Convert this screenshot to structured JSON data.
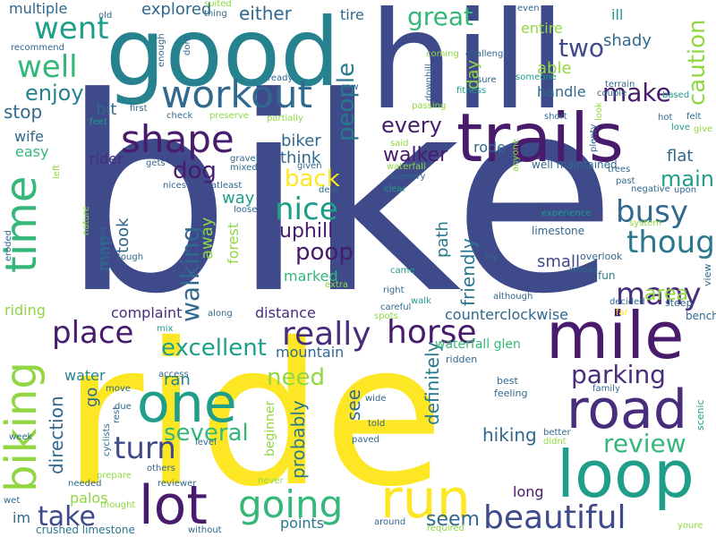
{
  "palette": {
    "navy": "#3e4a89",
    "purple": "#481b6d",
    "teal": "#26828e",
    "green": "#35b779",
    "lime": "#90d743",
    "yellow": "#fde725",
    "blue": "#31688e",
    "blue2": "#2a788e",
    "sea": "#1f9e89",
    "violet": "#472d7b"
  },
  "words": [
    {
      "text": "bike",
      "color": "navy"
    },
    {
      "text": "ride",
      "color": "yellow"
    },
    {
      "text": "hill",
      "color": "navy"
    },
    {
      "text": "good",
      "color": "teal"
    },
    {
      "text": "trails",
      "color": "purple"
    },
    {
      "text": "mile",
      "color": "purple"
    },
    {
      "text": "loop",
      "color": "sea"
    },
    {
      "text": "run",
      "color": "yellow"
    },
    {
      "text": "one",
      "color": "sea"
    },
    {
      "text": "lot",
      "color": "purple"
    },
    {
      "text": "road",
      "color": "violet"
    },
    {
      "text": "time",
      "color": "green"
    },
    {
      "text": "biking",
      "color": "lime"
    },
    {
      "text": "workout",
      "color": "blue"
    },
    {
      "text": "shape",
      "color": "purple"
    },
    {
      "text": "going",
      "color": "green"
    },
    {
      "text": "beautiful",
      "color": "navy"
    },
    {
      "text": "really",
      "color": "violet"
    },
    {
      "text": "horse",
      "color": "purple"
    },
    {
      "text": "went",
      "color": "sea"
    },
    {
      "text": "well",
      "color": "green"
    },
    {
      "text": "nice",
      "color": "sea"
    },
    {
      "text": "busy",
      "color": "blue"
    },
    {
      "text": "many",
      "color": "violet"
    },
    {
      "text": "though",
      "color": "blue2"
    },
    {
      "text": "place",
      "color": "purple"
    },
    {
      "text": "turn",
      "color": "navy"
    },
    {
      "text": "take",
      "color": "navy"
    },
    {
      "text": "walking",
      "color": "blue"
    },
    {
      "text": "great",
      "color": "green"
    },
    {
      "text": "people",
      "color": "blue2"
    },
    {
      "text": "caution",
      "color": "lime"
    },
    {
      "text": "two",
      "color": "navy"
    },
    {
      "text": "make",
      "color": "purple"
    },
    {
      "text": "parking",
      "color": "violet"
    },
    {
      "text": "review",
      "color": "green"
    },
    {
      "text": "several",
      "color": "green"
    },
    {
      "text": "excellent",
      "color": "sea"
    },
    {
      "text": "poop",
      "color": "purple"
    },
    {
      "text": "back",
      "color": "yellow"
    },
    {
      "text": "enjoy",
      "color": "teal"
    },
    {
      "text": "stop",
      "color": "blue"
    },
    {
      "text": "dog",
      "color": "purple"
    },
    {
      "text": "main",
      "color": "sea"
    },
    {
      "text": "uphill",
      "color": "purple"
    },
    {
      "text": "need",
      "color": "lime"
    },
    {
      "text": "direction",
      "color": "blue"
    },
    {
      "text": "definitely",
      "color": "blue2"
    },
    {
      "text": "friendly",
      "color": "blue2"
    },
    {
      "text": "walker",
      "color": "purple"
    },
    {
      "text": "hiking",
      "color": "blue"
    },
    {
      "text": "seem",
      "color": "blue"
    },
    {
      "text": "probably",
      "color": "blue2"
    },
    {
      "text": "see",
      "color": "blue"
    },
    {
      "text": "area",
      "color": "lime"
    },
    {
      "text": "every",
      "color": "purple"
    },
    {
      "text": "either",
      "color": "blue"
    },
    {
      "text": "explored",
      "color": "blue"
    },
    {
      "text": "shady",
      "color": "blue"
    },
    {
      "text": "biker",
      "color": "blue"
    },
    {
      "text": "think",
      "color": "blue"
    },
    {
      "text": "flat",
      "color": "blue"
    },
    {
      "text": "way",
      "color": "sea"
    },
    {
      "text": "took",
      "color": "blue"
    },
    {
      "text": "map",
      "color": "blue"
    },
    {
      "text": "away",
      "color": "lime"
    },
    {
      "text": "forest",
      "color": "lime"
    },
    {
      "text": "path",
      "color": "blue2"
    },
    {
      "text": "small",
      "color": "navy"
    },
    {
      "text": "marked",
      "color": "green"
    },
    {
      "text": "distance",
      "color": "violet"
    },
    {
      "text": "mountain",
      "color": "blue"
    },
    {
      "text": "complaint",
      "color": "violet"
    },
    {
      "text": "counterclockwise",
      "color": "blue"
    },
    {
      "text": "water",
      "color": "teal"
    },
    {
      "text": "ran",
      "color": "teal"
    },
    {
      "text": "go",
      "color": "blue"
    },
    {
      "text": "points",
      "color": "blue2"
    },
    {
      "text": "long",
      "color": "purple"
    },
    {
      "text": "palos",
      "color": "lime"
    },
    {
      "text": "beginner",
      "color": "lime"
    },
    {
      "text": "rider",
      "color": "violet"
    },
    {
      "text": "bit",
      "color": "blue"
    },
    {
      "text": "handle",
      "color": "blue"
    },
    {
      "text": "able",
      "color": "lime"
    },
    {
      "text": "entire",
      "color": "lime"
    },
    {
      "text": "ill",
      "color": "sea"
    },
    {
      "text": "day",
      "color": "lime"
    },
    {
      "text": "rode",
      "color": "blue"
    },
    {
      "text": "wife",
      "color": "blue"
    },
    {
      "text": "easy",
      "color": "green"
    },
    {
      "text": "riding",
      "color": "lime"
    },
    {
      "text": "multiple",
      "color": "blue"
    },
    {
      "text": "tire",
      "color": "blue"
    },
    {
      "text": "im",
      "color": "blue"
    },
    {
      "text": "crushed limestone",
      "color": "blue2"
    },
    {
      "text": "well maintained",
      "color": "blue"
    },
    {
      "text": "waterfall glen",
      "color": "green"
    },
    {
      "text": "limestone",
      "color": "blue"
    },
    {
      "text": "benches",
      "color": "blue"
    },
    {
      "text": "steep",
      "color": "blue"
    },
    {
      "text": "scenic",
      "color": "sea"
    },
    {
      "text": "family",
      "color": "blue"
    },
    {
      "text": "feeling",
      "color": "blue"
    },
    {
      "text": "best",
      "color": "blue"
    },
    {
      "text": "ridden",
      "color": "blue"
    },
    {
      "text": "tough",
      "color": "blue"
    },
    {
      "text": "woods",
      "color": "blue"
    },
    {
      "text": "fun",
      "color": "teal"
    },
    {
      "text": "view",
      "color": "blue"
    },
    {
      "text": "overlook",
      "color": "blue"
    },
    {
      "text": "system",
      "color": "lime"
    },
    {
      "text": "experience",
      "color": "sea"
    },
    {
      "text": "negative",
      "color": "blue"
    },
    {
      "text": "upon",
      "color": "blue"
    },
    {
      "text": "past",
      "color": "blue"
    },
    {
      "text": "trees",
      "color": "blue"
    },
    {
      "text": "plenty",
      "color": "blue"
    },
    {
      "text": "look",
      "color": "lime"
    },
    {
      "text": "love",
      "color": "sea"
    },
    {
      "text": "give",
      "color": "lime"
    },
    {
      "text": "felt",
      "color": "blue"
    },
    {
      "text": "hot",
      "color": "blue"
    },
    {
      "text": "short",
      "color": "blue"
    },
    {
      "text": "based",
      "color": "sea"
    },
    {
      "text": "couple",
      "color": "blue"
    },
    {
      "text": "terrain",
      "color": "blue"
    },
    {
      "text": "downhill",
      "color": "blue"
    },
    {
      "text": "passing",
      "color": "lime"
    },
    {
      "text": "saw",
      "color": "blue"
    },
    {
      "text": "ready",
      "color": "blue"
    },
    {
      "text": "fitness",
      "color": "sea"
    },
    {
      "text": "someone",
      "color": "sea"
    },
    {
      "text": "sure",
      "color": "blue"
    },
    {
      "text": "challenge",
      "color": "blue"
    },
    {
      "text": "coming",
      "color": "lime"
    },
    {
      "text": "even",
      "color": "blue"
    },
    {
      "text": "thing",
      "color": "blue"
    },
    {
      "text": "suited",
      "color": "lime"
    },
    {
      "text": "old",
      "color": "blue"
    },
    {
      "text": "recommend",
      "color": "blue"
    },
    {
      "text": "enough",
      "color": "blue"
    },
    {
      "text": "dont",
      "color": "blue"
    },
    {
      "text": "feet",
      "color": "sea"
    },
    {
      "text": "first",
      "color": "blue"
    },
    {
      "text": "check",
      "color": "blue"
    },
    {
      "text": "preserve",
      "color": "lime"
    },
    {
      "text": "partially",
      "color": "lime"
    },
    {
      "text": "gets",
      "color": "blue"
    },
    {
      "text": "gravel",
      "color": "blue"
    },
    {
      "text": "mixed",
      "color": "blue"
    },
    {
      "text": "given",
      "color": "blue"
    },
    {
      "text": "nicest",
      "color": "blue"
    },
    {
      "text": "atleast",
      "color": "blue"
    },
    {
      "text": "deal",
      "color": "blue"
    },
    {
      "text": "loose",
      "color": "blue"
    },
    {
      "text": "scenery",
      "color": "blue"
    },
    {
      "text": "waterfall",
      "color": "lime"
    },
    {
      "text": "said",
      "color": "lime"
    },
    {
      "text": "clear",
      "color": "sea"
    },
    {
      "text": "anyone",
      "color": "lime"
    },
    {
      "text": "try",
      "color": "blue"
    },
    {
      "text": "although",
      "color": "blue"
    },
    {
      "text": "walk",
      "color": "sea"
    },
    {
      "text": "decided",
      "color": "blue"
    },
    {
      "text": "far",
      "color": "yellow"
    },
    {
      "text": "right",
      "color": "blue"
    },
    {
      "text": "came",
      "color": "sea"
    },
    {
      "text": "careful",
      "color": "blue"
    },
    {
      "text": "spots",
      "color": "lime"
    },
    {
      "text": "along",
      "color": "blue"
    },
    {
      "text": "mix",
      "color": "sea"
    },
    {
      "text": "access",
      "color": "blue"
    },
    {
      "text": "move",
      "color": "blue"
    },
    {
      "text": "due",
      "color": "blue"
    },
    {
      "text": "rest",
      "color": "blue"
    },
    {
      "text": "level",
      "color": "blue"
    },
    {
      "text": "told",
      "color": "blue"
    },
    {
      "text": "paved",
      "color": "blue"
    },
    {
      "text": "wide",
      "color": "blue"
    },
    {
      "text": "better",
      "color": "blue"
    },
    {
      "text": "didnt",
      "color": "lime"
    },
    {
      "text": "cyclists",
      "color": "blue"
    },
    {
      "text": "others",
      "color": "blue"
    },
    {
      "text": "prepare",
      "color": "lime"
    },
    {
      "text": "reviewer",
      "color": "blue"
    },
    {
      "text": "never",
      "color": "lime"
    },
    {
      "text": "needed",
      "color": "blue"
    },
    {
      "text": "thought",
      "color": "lime"
    },
    {
      "text": "without",
      "color": "blue"
    },
    {
      "text": "around",
      "color": "blue"
    },
    {
      "text": "required",
      "color": "lime"
    },
    {
      "text": "youre",
      "color": "lime"
    },
    {
      "text": "week",
      "color": "blue"
    },
    {
      "text": "wet",
      "color": "blue"
    },
    {
      "text": "eroded",
      "color": "blue"
    },
    {
      "text": "nature",
      "color": "lime"
    },
    {
      "text": "provided",
      "color": "blue"
    },
    {
      "text": "extra",
      "color": "lime"
    },
    {
      "text": "left",
      "color": "lime"
    }
  ]
}
